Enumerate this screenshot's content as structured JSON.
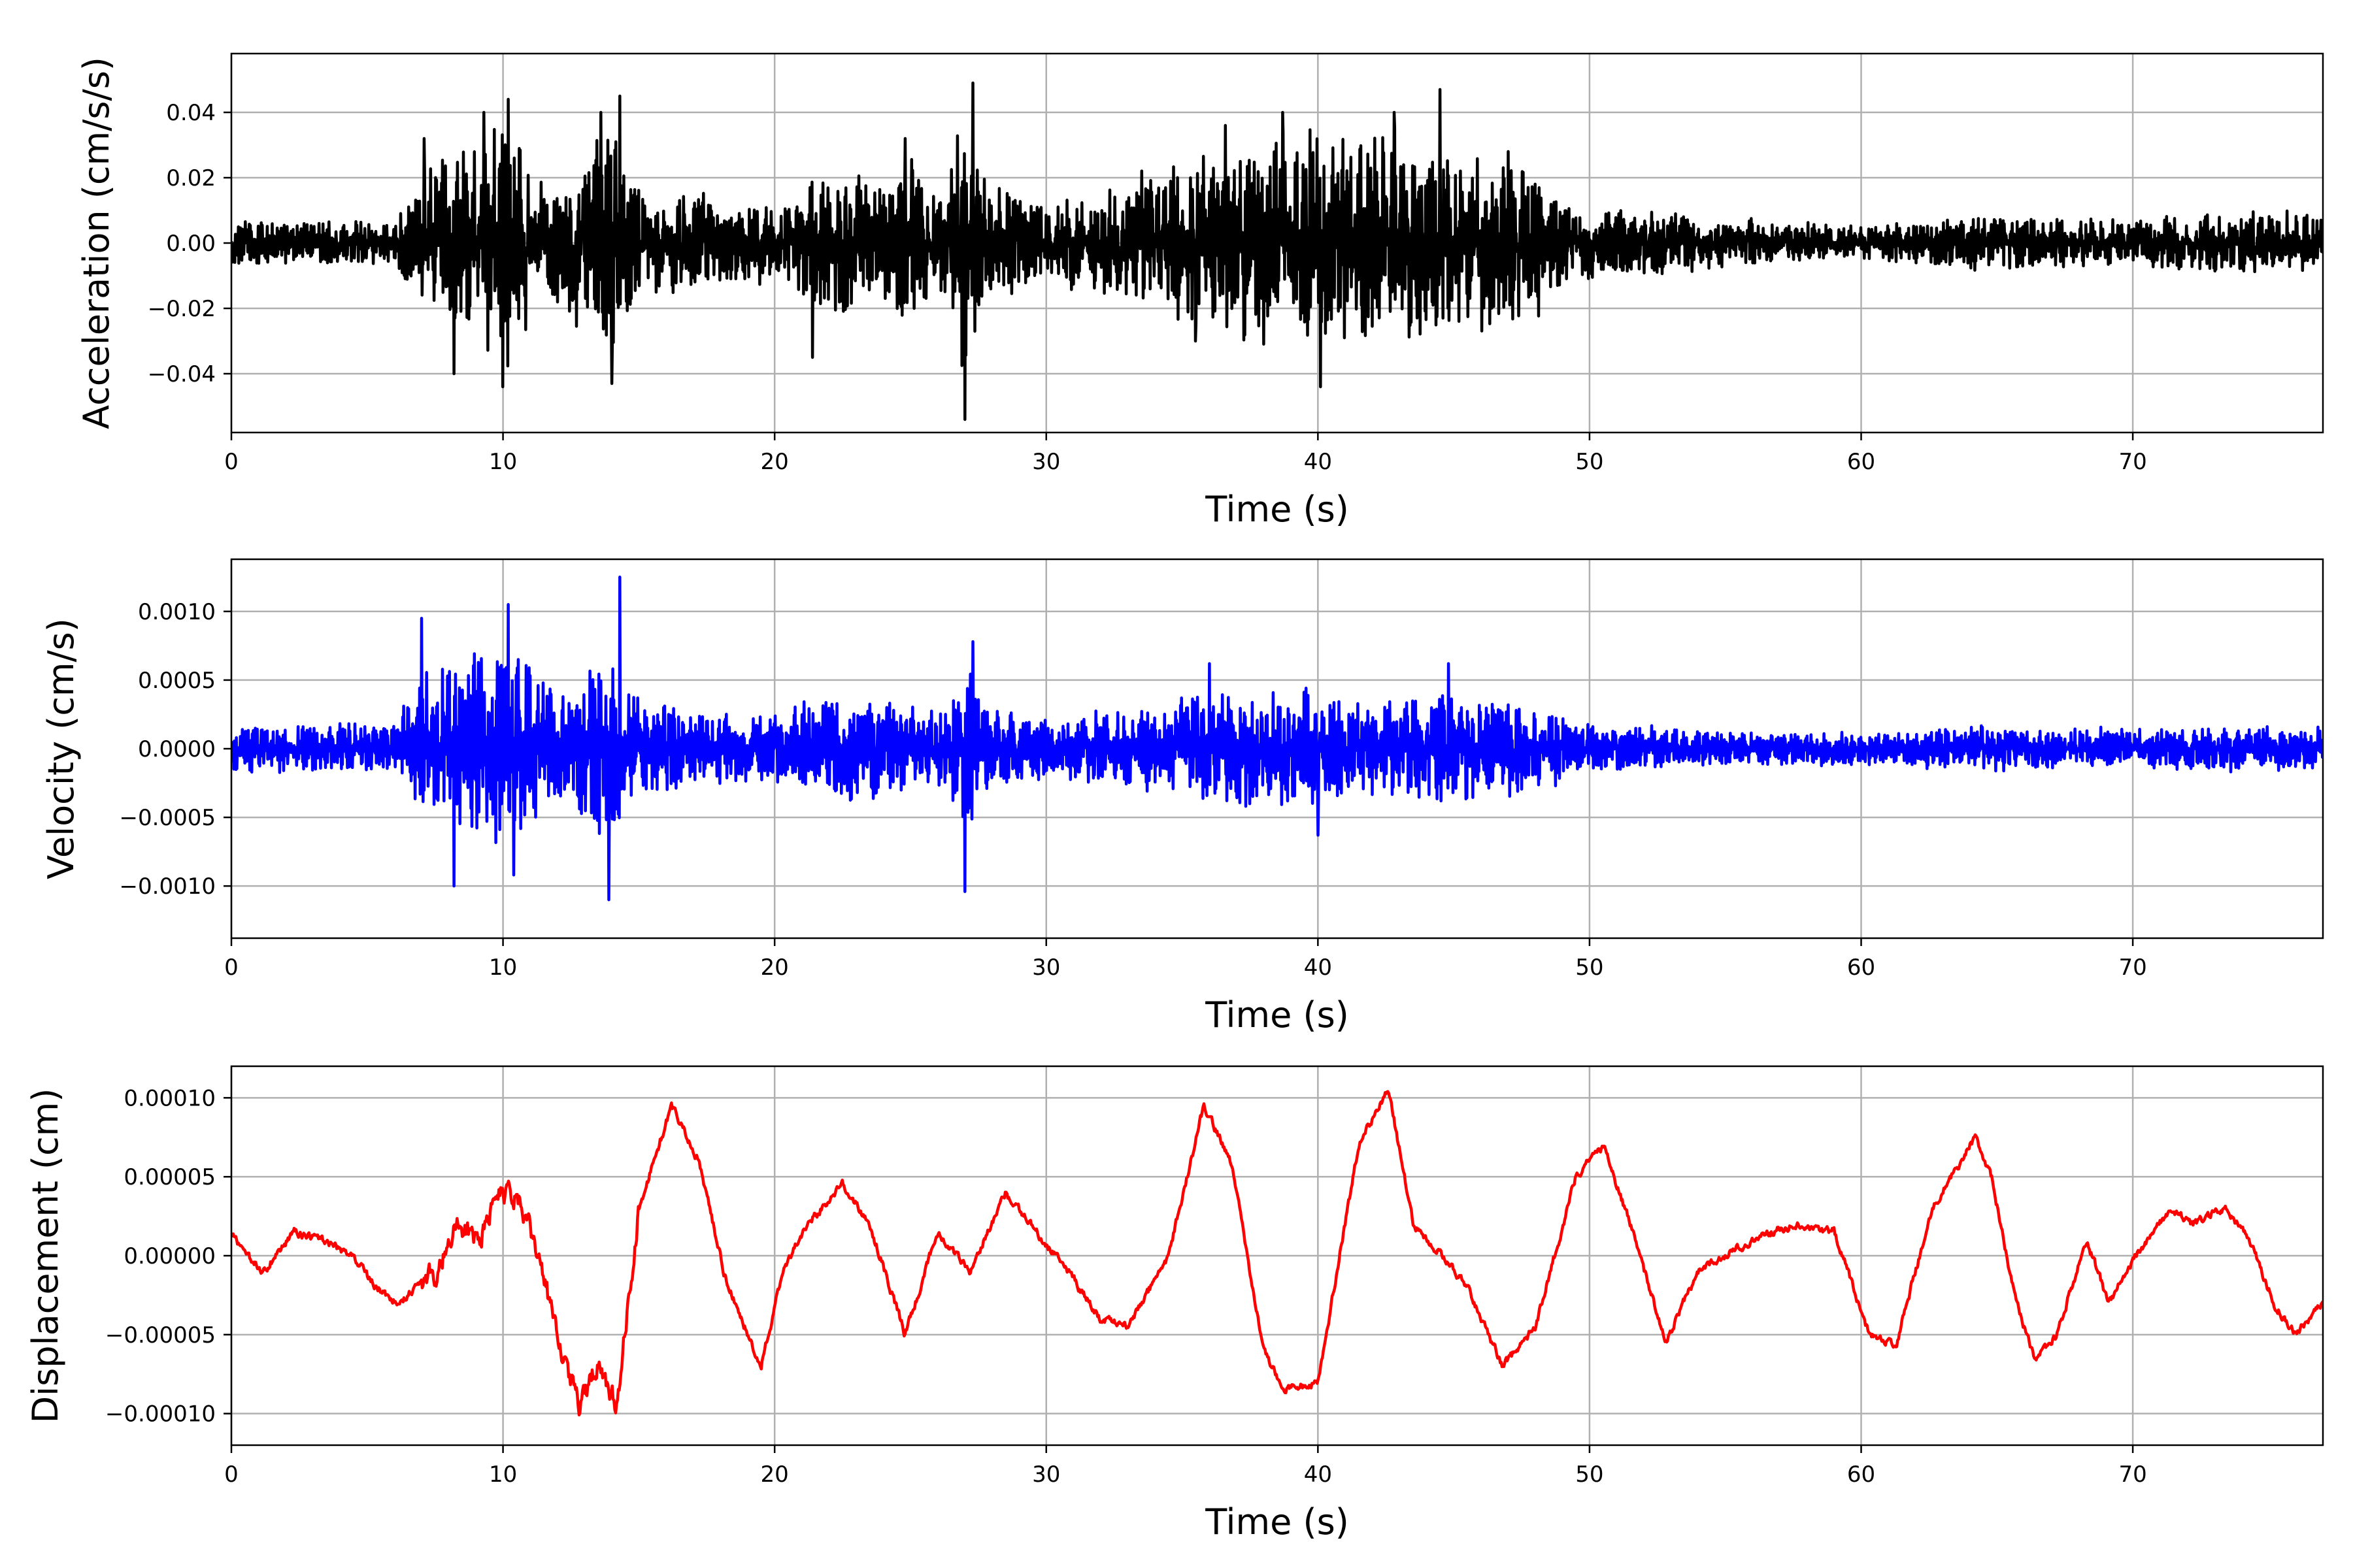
{
  "chart_data": [
    {
      "type": "line",
      "xlabel": "Time (s)",
      "ylabel": "Acceleration (cm/s/s)",
      "xlim": [
        0,
        77
      ],
      "ylim": [
        -0.058,
        0.058
      ],
      "xticks": [
        0,
        10,
        20,
        30,
        40,
        50,
        60,
        70
      ],
      "xtick_labels": [
        "0",
        "10",
        "20",
        "30",
        "40",
        "50",
        "60",
        "70"
      ],
      "yticks": [
        -0.04,
        -0.02,
        0.0,
        0.02,
        0.04
      ],
      "ytick_labels": [
        "−0.04",
        "−0.02",
        "0.00",
        "0.02",
        "0.04"
      ],
      "grid": true,
      "color": "#000000",
      "series": [
        {
          "envelope_t": [
            0,
            6,
            6.5,
            8,
            10,
            12,
            14,
            15,
            17,
            20,
            22,
            24,
            25,
            26,
            27,
            28,
            30,
            33,
            35,
            38,
            40,
            44,
            48,
            49,
            55,
            60,
            65,
            70,
            74,
            77
          ],
          "envelope_a": [
            0.007,
            0.007,
            0.015,
            0.03,
            0.04,
            0.022,
            0.038,
            0.018,
            0.016,
            0.012,
            0.026,
            0.018,
            0.03,
            0.014,
            0.045,
            0.02,
            0.013,
            0.02,
            0.028,
            0.032,
            0.035,
            0.032,
            0.026,
            0.013,
            0.008,
            0.006,
            0.009,
            0.007,
            0.011,
            0.009
          ],
          "spikes_t": [
            7.1,
            8.2,
            9.3,
            10.0,
            10.2,
            13.6,
            14.0,
            14.3,
            21.4,
            24.8,
            27.0,
            27.3,
            35.5,
            36.6,
            38.7,
            40.1,
            42.8,
            44.5,
            47.0
          ],
          "spikes_v": [
            0.032,
            -0.04,
            0.04,
            -0.044,
            0.044,
            0.04,
            -0.043,
            0.045,
            -0.035,
            0.032,
            -0.054,
            0.049,
            -0.03,
            0.036,
            0.04,
            -0.044,
            0.04,
            0.047,
            0.028
          ]
        }
      ]
    },
    {
      "type": "line",
      "xlabel": "Time (s)",
      "ylabel": "Velocity (cm/s)",
      "xlim": [
        0,
        77
      ],
      "ylim": [
        -0.00138,
        0.00138
      ],
      "xticks": [
        0,
        10,
        20,
        30,
        40,
        50,
        60,
        70
      ],
      "xtick_labels": [
        "0",
        "10",
        "20",
        "30",
        "40",
        "50",
        "60",
        "70"
      ],
      "yticks": [
        -0.001,
        -0.0005,
        0.0,
        0.0005,
        0.001
      ],
      "ytick_labels": [
        "−0.0010",
        "−0.0005",
        "0.0000",
        "0.0005",
        "0.0010"
      ],
      "grid": true,
      "color": "#0000ff",
      "series": [
        {
          "envelope_t": [
            0,
            6,
            6.8,
            8,
            10,
            11,
            12.5,
            14,
            15,
            18,
            20,
            22,
            25,
            26,
            27,
            28,
            30,
            33,
            36,
            40,
            42,
            45,
            48,
            50,
            55,
            60,
            65,
            70,
            74,
            77
          ],
          "envelope_a": [
            0.00018,
            0.0002,
            0.00055,
            0.0007,
            0.00085,
            0.00065,
            0.00045,
            0.0008,
            0.00035,
            0.0003,
            0.00028,
            0.00042,
            0.0004,
            0.0003,
            0.0006,
            0.00032,
            0.00025,
            0.0003,
            0.00045,
            0.00045,
            0.0004,
            0.00045,
            0.00035,
            0.00018,
            0.00015,
            0.00012,
            0.00018,
            0.00015,
            0.00018,
            0.00016
          ],
          "spikes_t": [
            7.0,
            8.2,
            10.2,
            10.4,
            13.9,
            14.3,
            27.0,
            27.3,
            36.0,
            40.0,
            44.8
          ],
          "spikes_v": [
            0.00095,
            -0.001,
            0.00105,
            -0.00092,
            -0.0011,
            0.00125,
            -0.00104,
            0.00078,
            0.00062,
            -0.00063,
            0.00062
          ]
        }
      ]
    },
    {
      "type": "line",
      "xlabel": "Time (s)",
      "ylabel": "Displacement (cm)",
      "xlim": [
        0,
        77
      ],
      "ylim": [
        -0.00012,
        0.00012
      ],
      "xticks": [
        0,
        10,
        20,
        30,
        40,
        50,
        60,
        70
      ],
      "xtick_labels": [
        "0",
        "10",
        "20",
        "30",
        "40",
        "50",
        "60",
        "70"
      ],
      "yticks": [
        -0.0001,
        -5e-05,
        0.0,
        5e-05,
        0.0001
      ],
      "ytick_labels": [
        "−0.00010",
        "−0.00005",
        "0.00000",
        "0.00005",
        "0.00010"
      ],
      "grid": true,
      "color": "#ff0000",
      "series": [
        {
          "x": [
            0,
            0.5,
            1.2,
            2.3,
            3.3,
            4.5,
            5.3,
            6.2,
            7.0,
            7.6,
            8.3,
            9.1,
            9.8,
            10.6,
            11.3,
            12.2,
            12.8,
            13.5,
            14.2,
            15.0,
            16.2,
            17.2,
            18.2,
            19.5,
            20.3,
            21.2,
            22.5,
            23.5,
            24.8,
            26.0,
            27.2,
            28.5,
            29.4,
            31.0,
            32.0,
            33.0,
            34.5,
            35.8,
            36.8,
            38.0,
            38.7,
            40.0,
            41.5,
            42.6,
            43.5,
            44.6,
            45.5,
            46.8,
            48.0,
            49.5,
            50.5,
            51.5,
            52.8,
            54.0,
            56.0,
            57.5,
            59.0,
            60.3,
            61.3,
            62.6,
            64.2,
            64.8,
            65.7,
            66.4,
            67.2,
            68.3,
            69.1,
            70.1,
            71.4,
            72.2,
            73.4,
            74.3,
            75.2,
            76.0,
            77.0
          ],
          "y": [
            1.5e-05,
            0,
            -1e-05,
            1.5e-05,
            1e-05,
            0,
            -2e-05,
            -3e-05,
            -1.5e-05,
            -1e-05,
            2e-05,
            1e-05,
            4e-05,
            3.5e-05,
            0,
            -6.5e-05,
            -9.5e-05,
            -7e-05,
            -9.5e-05,
            3e-05,
            9.5e-05,
            6e-05,
            -1.5e-05,
            -7e-05,
            -1e-05,
            2e-05,
            4.5e-05,
            2e-05,
            -5e-05,
            1.5e-05,
            -1e-05,
            4e-05,
            2e-05,
            -1.5e-05,
            -4e-05,
            -4.5e-05,
            0,
            9.5e-05,
            6e-05,
            -6e-05,
            -8.5e-05,
            -8e-05,
            7e-05,
            0.000105,
            2e-05,
            0,
            -2e-05,
            -7e-05,
            -4.5e-05,
            5e-05,
            7e-05,
            2e-05,
            -5.5e-05,
            -1e-05,
            1e-05,
            2e-05,
            1.5e-05,
            -5e-05,
            -5.5e-05,
            3e-05,
            7.5e-05,
            5e-05,
            -3e-05,
            -6.5e-05,
            -5e-05,
            1e-05,
            -3e-05,
            0,
            3e-05,
            2e-05,
            3e-05,
            1e-05,
            -3e-05,
            -5e-05,
            -3e-05
          ]
        }
      ]
    }
  ]
}
